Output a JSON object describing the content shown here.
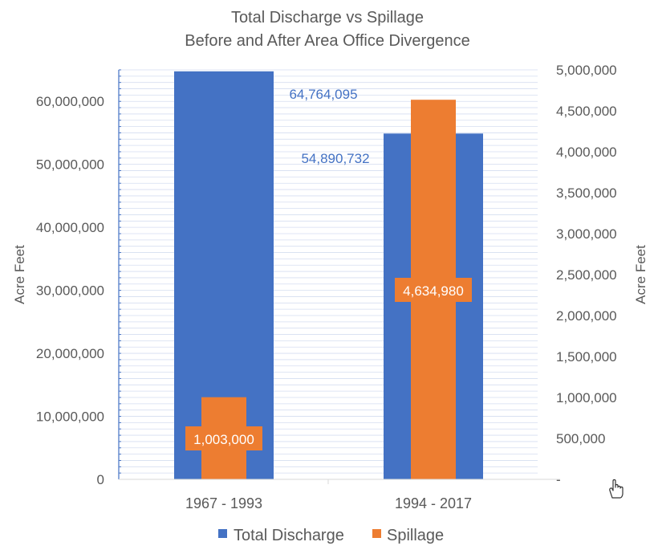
{
  "chart_data": {
    "type": "bar",
    "title": "Total Discharge vs Spillage",
    "subtitle": "Before and After Area Office Divergence",
    "categories": [
      "1967 - 1993",
      "1994 - 2017"
    ],
    "series": [
      {
        "name": "Total Discharge",
        "axis": "left",
        "color": "#4472C4",
        "values": [
          64764095,
          54890732
        ],
        "labels": [
          "64,764,095",
          "54,890,732"
        ]
      },
      {
        "name": "Spillage",
        "axis": "right",
        "color": "#ED7D31",
        "values": [
          1003000,
          4634980
        ],
        "labels": [
          "1,003,000",
          "4,634,980"
        ]
      }
    ],
    "y_left": {
      "label": "Acre Feet",
      "min": 0,
      "max": 65000000,
      "ticks": [
        0,
        10000000,
        20000000,
        30000000,
        40000000,
        50000000,
        60000000
      ],
      "tick_labels": [
        "0",
        "10,000,000",
        "20,000,000",
        "30,000,000",
        "40,000,000",
        "50,000,000",
        "60,000,000"
      ]
    },
    "y_right": {
      "label": "Acre Feet",
      "min": 0,
      "max": 5000000,
      "ticks": [
        0,
        500000,
        1000000,
        1500000,
        2000000,
        2500000,
        3000000,
        3500000,
        4000000,
        4500000,
        5000000
      ],
      "tick_labels": [
        "-",
        "500,000",
        "1,000,000",
        "1,500,000",
        "2,000,000",
        "2,500,000",
        "3,000,000",
        "3,500,000",
        "4,000,000",
        "4,500,000",
        "5,000,000"
      ]
    },
    "grid": true,
    "legend_position": "bottom"
  },
  "cursor_icon": "hand-pointer-icon"
}
